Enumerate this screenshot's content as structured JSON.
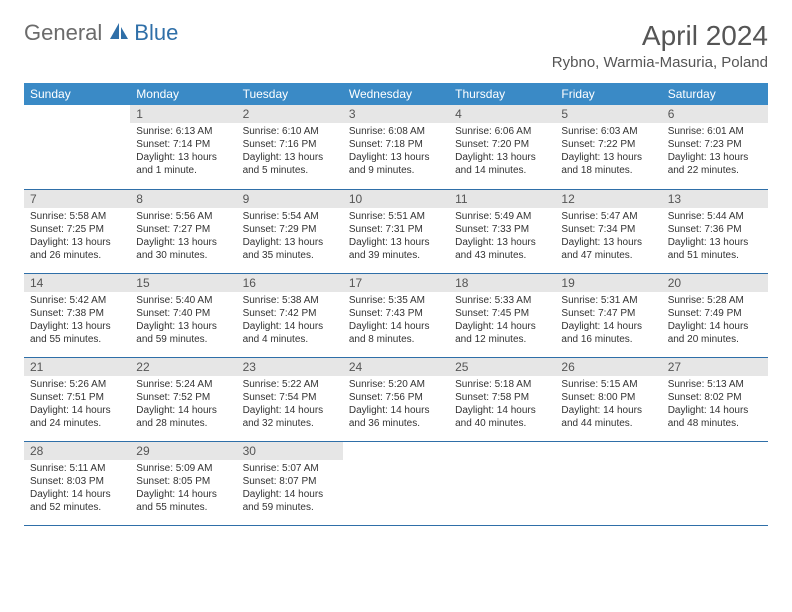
{
  "logo": {
    "general": "General",
    "blue": "Blue"
  },
  "title": "April 2024",
  "location": "Rybno, Warmia-Masuria, Poland",
  "colors": {
    "header_bg": "#3a8ac6",
    "header_text": "#ffffff",
    "daynum_bg": "#e6e6e6",
    "border": "#2f6fa8",
    "logo_gray": "#6b6b6b",
    "logo_blue": "#2f6fa8"
  },
  "weekdays": [
    "Sunday",
    "Monday",
    "Tuesday",
    "Wednesday",
    "Thursday",
    "Friday",
    "Saturday"
  ],
  "layout": {
    "start_offset": 1,
    "days_in_month": 30
  },
  "days": {
    "1": {
      "sunrise": "6:13 AM",
      "sunset": "7:14 PM",
      "daylight": "13 hours and 1 minute."
    },
    "2": {
      "sunrise": "6:10 AM",
      "sunset": "7:16 PM",
      "daylight": "13 hours and 5 minutes."
    },
    "3": {
      "sunrise": "6:08 AM",
      "sunset": "7:18 PM",
      "daylight": "13 hours and 9 minutes."
    },
    "4": {
      "sunrise": "6:06 AM",
      "sunset": "7:20 PM",
      "daylight": "13 hours and 14 minutes."
    },
    "5": {
      "sunrise": "6:03 AM",
      "sunset": "7:22 PM",
      "daylight": "13 hours and 18 minutes."
    },
    "6": {
      "sunrise": "6:01 AM",
      "sunset": "7:23 PM",
      "daylight": "13 hours and 22 minutes."
    },
    "7": {
      "sunrise": "5:58 AM",
      "sunset": "7:25 PM",
      "daylight": "13 hours and 26 minutes."
    },
    "8": {
      "sunrise": "5:56 AM",
      "sunset": "7:27 PM",
      "daylight": "13 hours and 30 minutes."
    },
    "9": {
      "sunrise": "5:54 AM",
      "sunset": "7:29 PM",
      "daylight": "13 hours and 35 minutes."
    },
    "10": {
      "sunrise": "5:51 AM",
      "sunset": "7:31 PM",
      "daylight": "13 hours and 39 minutes."
    },
    "11": {
      "sunrise": "5:49 AM",
      "sunset": "7:33 PM",
      "daylight": "13 hours and 43 minutes."
    },
    "12": {
      "sunrise": "5:47 AM",
      "sunset": "7:34 PM",
      "daylight": "13 hours and 47 minutes."
    },
    "13": {
      "sunrise": "5:44 AM",
      "sunset": "7:36 PM",
      "daylight": "13 hours and 51 minutes."
    },
    "14": {
      "sunrise": "5:42 AM",
      "sunset": "7:38 PM",
      "daylight": "13 hours and 55 minutes."
    },
    "15": {
      "sunrise": "5:40 AM",
      "sunset": "7:40 PM",
      "daylight": "13 hours and 59 minutes."
    },
    "16": {
      "sunrise": "5:38 AM",
      "sunset": "7:42 PM",
      "daylight": "14 hours and 4 minutes."
    },
    "17": {
      "sunrise": "5:35 AM",
      "sunset": "7:43 PM",
      "daylight": "14 hours and 8 minutes."
    },
    "18": {
      "sunrise": "5:33 AM",
      "sunset": "7:45 PM",
      "daylight": "14 hours and 12 minutes."
    },
    "19": {
      "sunrise": "5:31 AM",
      "sunset": "7:47 PM",
      "daylight": "14 hours and 16 minutes."
    },
    "20": {
      "sunrise": "5:28 AM",
      "sunset": "7:49 PM",
      "daylight": "14 hours and 20 minutes."
    },
    "21": {
      "sunrise": "5:26 AM",
      "sunset": "7:51 PM",
      "daylight": "14 hours and 24 minutes."
    },
    "22": {
      "sunrise": "5:24 AM",
      "sunset": "7:52 PM",
      "daylight": "14 hours and 28 minutes."
    },
    "23": {
      "sunrise": "5:22 AM",
      "sunset": "7:54 PM",
      "daylight": "14 hours and 32 minutes."
    },
    "24": {
      "sunrise": "5:20 AM",
      "sunset": "7:56 PM",
      "daylight": "14 hours and 36 minutes."
    },
    "25": {
      "sunrise": "5:18 AM",
      "sunset": "7:58 PM",
      "daylight": "14 hours and 40 minutes."
    },
    "26": {
      "sunrise": "5:15 AM",
      "sunset": "8:00 PM",
      "daylight": "14 hours and 44 minutes."
    },
    "27": {
      "sunrise": "5:13 AM",
      "sunset": "8:02 PM",
      "daylight": "14 hours and 48 minutes."
    },
    "28": {
      "sunrise": "5:11 AM",
      "sunset": "8:03 PM",
      "daylight": "14 hours and 52 minutes."
    },
    "29": {
      "sunrise": "5:09 AM",
      "sunset": "8:05 PM",
      "daylight": "14 hours and 55 minutes."
    },
    "30": {
      "sunrise": "5:07 AM",
      "sunset": "8:07 PM",
      "daylight": "14 hours and 59 minutes."
    }
  }
}
